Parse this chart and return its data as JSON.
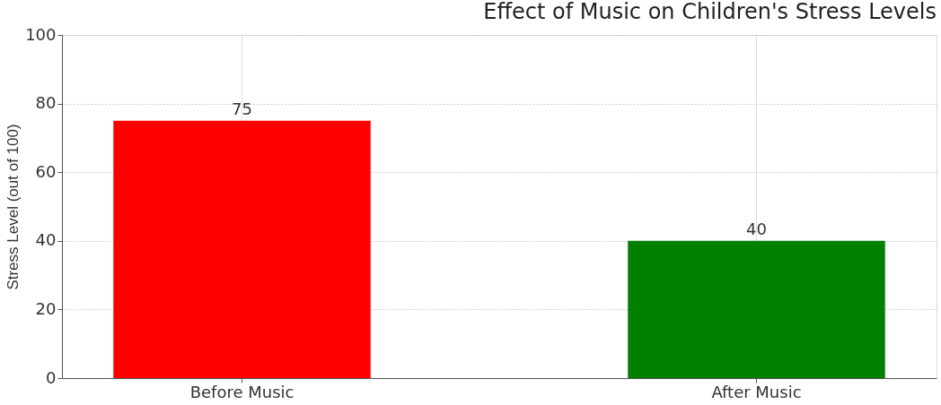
{
  "chart_data": {
    "type": "bar",
    "title": "Effect of Music on Children's Stress Levels",
    "ylabel": "Stress Level (out of 100)",
    "categories": [
      "Before Music",
      "After Music"
    ],
    "values": [
      75,
      40
    ],
    "colors": [
      "#ff0000",
      "#008000"
    ],
    "ylim": [
      0,
      100
    ],
    "yticks": [
      0,
      20,
      40,
      60,
      80,
      100
    ],
    "grid": true,
    "data_labels": true
  }
}
